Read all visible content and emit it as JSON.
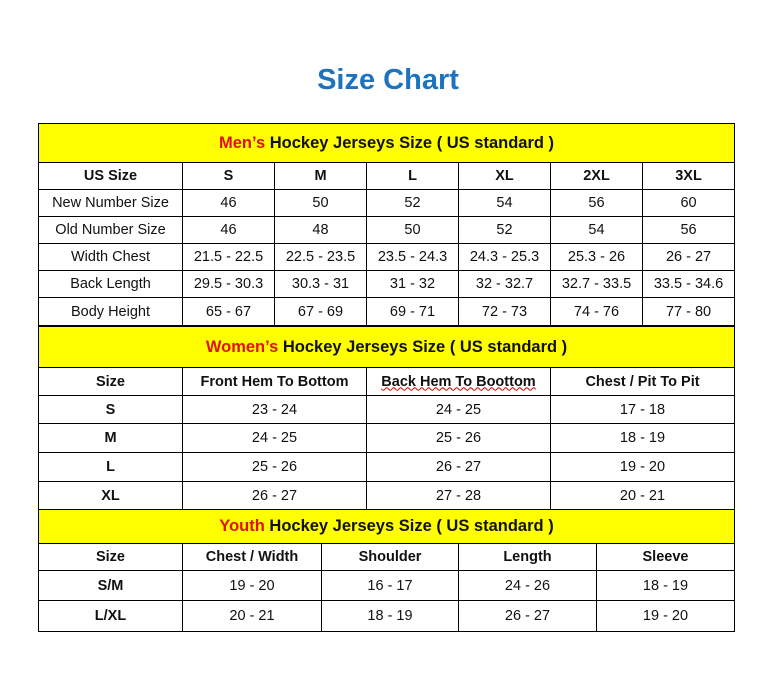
{
  "title": "Size Chart",
  "colors": {
    "title": "#1e73be",
    "header_bg": "#ffff00",
    "highlight": "#e01010"
  },
  "mens": {
    "header_prefix": "Men’s",
    "header_rest": " Hockey Jerseys Size ( US standard )",
    "columns": [
      "US Size",
      "S",
      "M",
      "L",
      "XL",
      "2XL",
      "3XL"
    ],
    "rows": [
      [
        "New Number Size",
        "46",
        "50",
        "52",
        "54",
        "56",
        "60"
      ],
      [
        "Old Number Size",
        "46",
        "48",
        "50",
        "52",
        "54",
        "56"
      ],
      [
        "Width Chest",
        "21.5 - 22.5",
        "22.5 - 23.5",
        "23.5 - 24.3",
        "24.3 - 25.3",
        "25.3 - 26",
        "26 - 27"
      ],
      [
        "Back Length",
        "29.5 - 30.3",
        "30.3 - 31",
        "31 - 32",
        "32 - 32.7",
        "32.7 - 33.5",
        "33.5 - 34.6"
      ],
      [
        "Body Height",
        "65 - 67",
        "67 - 69",
        "69 - 71",
        "72 - 73",
        "74 - 76",
        "77 - 80"
      ]
    ]
  },
  "womens": {
    "header_prefix": "Women’s",
    "header_rest": " Hockey Jerseys Size ( US standard )",
    "columns": [
      "Size",
      "Front Hem To Bottom",
      "Back Hem To Boottom",
      "Chest / Pit To Pit"
    ],
    "rows": [
      [
        "S",
        "23 - 24",
        "24 - 25",
        "17 - 18"
      ],
      [
        "M",
        "24 - 25",
        "25 - 26",
        "18 - 19"
      ],
      [
        "L",
        "25 - 26",
        "26 - 27",
        "19 - 20"
      ],
      [
        "XL",
        "26 - 27",
        "27 - 28",
        "20 - 21"
      ]
    ]
  },
  "youth": {
    "header_prefix": "Youth",
    "header_rest": " Hockey Jerseys Size ( US standard )",
    "columns": [
      "Size",
      "Chest / Width",
      "Shoulder",
      "Length",
      "Sleeve"
    ],
    "rows": [
      [
        "S/M",
        "19 - 20",
        "16 - 17",
        "24 - 26",
        "18 - 19"
      ],
      [
        "L/XL",
        "20 - 21",
        "18 - 19",
        "26 - 27",
        "19 - 20"
      ]
    ]
  }
}
